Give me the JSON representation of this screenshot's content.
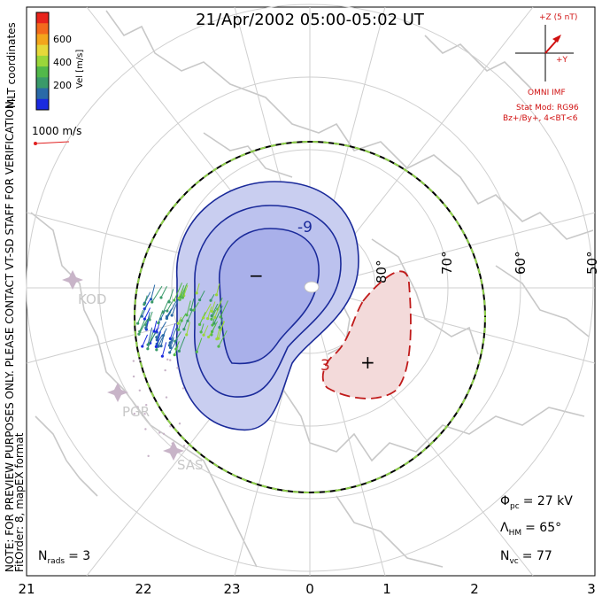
{
  "title": "21/Apr/2002 05:00-05:02 UT",
  "side_note_line1": "NOTE: FOR PREVIEW PURPOSES ONLY. PLEASE CONTACT VT-SD STAFF FOR VERIFICATION.",
  "side_note_line2": "FitOrder: 8, mapEX format",
  "colorbar": {
    "title_line1": "MLT coordinates",
    "unit_label": "Vel [m/s]",
    "ticks": [
      "600",
      "400",
      "200"
    ],
    "colors": [
      "#e8241c",
      "#f36a1c",
      "#f3a51c",
      "#e6d83a",
      "#9ad63a",
      "#52b84a",
      "#3a9a6a",
      "#2a6aa8",
      "#1a2ae0"
    ]
  },
  "vector_scale": {
    "label": "1000 m/s",
    "color": "#e02020"
  },
  "imf": {
    "z_label": "+Z (5 nT)",
    "y_label": "+Y",
    "source": "OMNI IMF",
    "model_line1": "Stat Mod: RG96",
    "model_line2": "Bz+/By+, 4<BT<6",
    "color": "#d01010"
  },
  "latitude_labels": [
    "80°",
    "70°",
    "60°",
    "50°"
  ],
  "contour_labels": {
    "neg_label": "-9",
    "pos_label": "3",
    "neg_center": "−",
    "pos_center": "+"
  },
  "stations": [
    {
      "name": "KOD"
    },
    {
      "name": "PGR"
    },
    {
      "name": "SAS"
    }
  ],
  "stats": {
    "phi_symbol": "Φ",
    "phi_sub": "pc",
    "phi_value": "= 27 kV",
    "lambda_symbol": "Λ",
    "lambda_sub": "HM",
    "lambda_value": "= 65°",
    "nvc_symbol": "N",
    "nvc_sub": "vc",
    "nvc_value": "= 77",
    "nrads_symbol": "N",
    "nrads_sub": "rads",
    "nrads_value": "= 3"
  },
  "mlt_ticks": [
    "21",
    "22",
    "23",
    "0",
    "1",
    "2",
    "3"
  ],
  "colors": {
    "negative_fill": "#c9cef0",
    "negative_inner": "#a9b0ea",
    "negative_line": "#1a2a9a",
    "positive_fill": "#f3dada",
    "positive_line": "#c01a1a",
    "coast": "#c8c8c8",
    "grid": "#cfcfcf",
    "hmb": "#8fd14a",
    "station": "#c8b4c8"
  }
}
